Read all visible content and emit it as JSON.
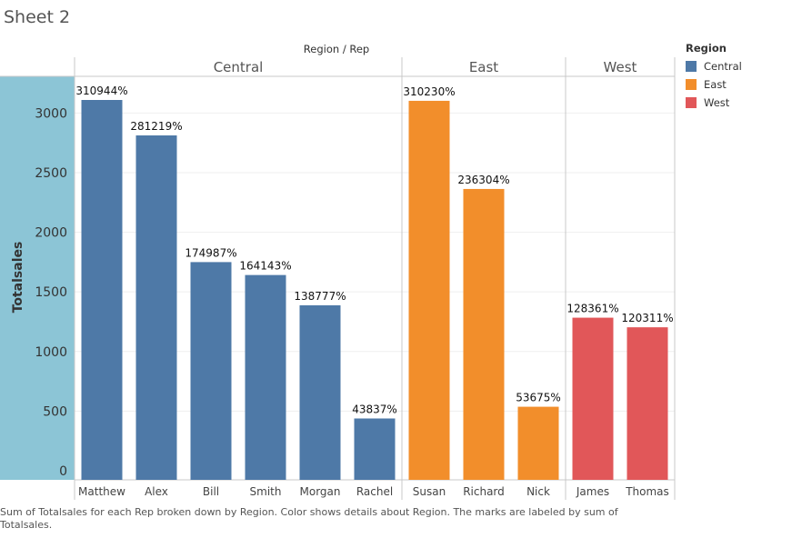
{
  "sheet_title": "Sheet 2",
  "caption": "Sum of Totalsales for each Rep broken down by Region.  Color shows details about Region.  The marks are labeled by sum of Totalsales.",
  "legend": {
    "title": "Region",
    "items": [
      {
        "label": "Central",
        "color": "#4e79a7"
      },
      {
        "label": "East",
        "color": "#f28e2b"
      },
      {
        "label": "West",
        "color": "#e15759"
      }
    ]
  },
  "chart_data": {
    "type": "bar",
    "title": "",
    "column_header": "Region / Rep",
    "ylabel": "Totalsales",
    "ylim": [
      0,
      3300
    ],
    "yticks": [
      0,
      500,
      1000,
      1500,
      2000,
      2500,
      3000
    ],
    "grid": true,
    "groups": [
      {
        "name": "Central",
        "color": "#4e79a7",
        "reps": [
          {
            "rep": "Matthew",
            "value": 3109.44,
            "label": "310944%"
          },
          {
            "rep": "Alex",
            "value": 2812.19,
            "label": "281219%"
          },
          {
            "rep": "Bill",
            "value": 1749.87,
            "label": "174987%"
          },
          {
            "rep": "Smith",
            "value": 1641.43,
            "label": "164143%"
          },
          {
            "rep": "Morgan",
            "value": 1387.77,
            "label": "138777%"
          },
          {
            "rep": "Rachel",
            "value": 438.37,
            "label": "43837%"
          }
        ]
      },
      {
        "name": "East",
        "color": "#f28e2b",
        "reps": [
          {
            "rep": "Susan",
            "value": 3102.3,
            "label": "310230%"
          },
          {
            "rep": "Richard",
            "value": 2363.04,
            "label": "236304%"
          },
          {
            "rep": "Nick",
            "value": 536.75,
            "label": "53675%"
          }
        ]
      },
      {
        "name": "West",
        "color": "#e15759",
        "reps": [
          {
            "rep": "James",
            "value": 1283.61,
            "label": "128361%"
          },
          {
            "rep": "Thomas",
            "value": 1203.11,
            "label": "120311%"
          }
        ]
      }
    ]
  }
}
